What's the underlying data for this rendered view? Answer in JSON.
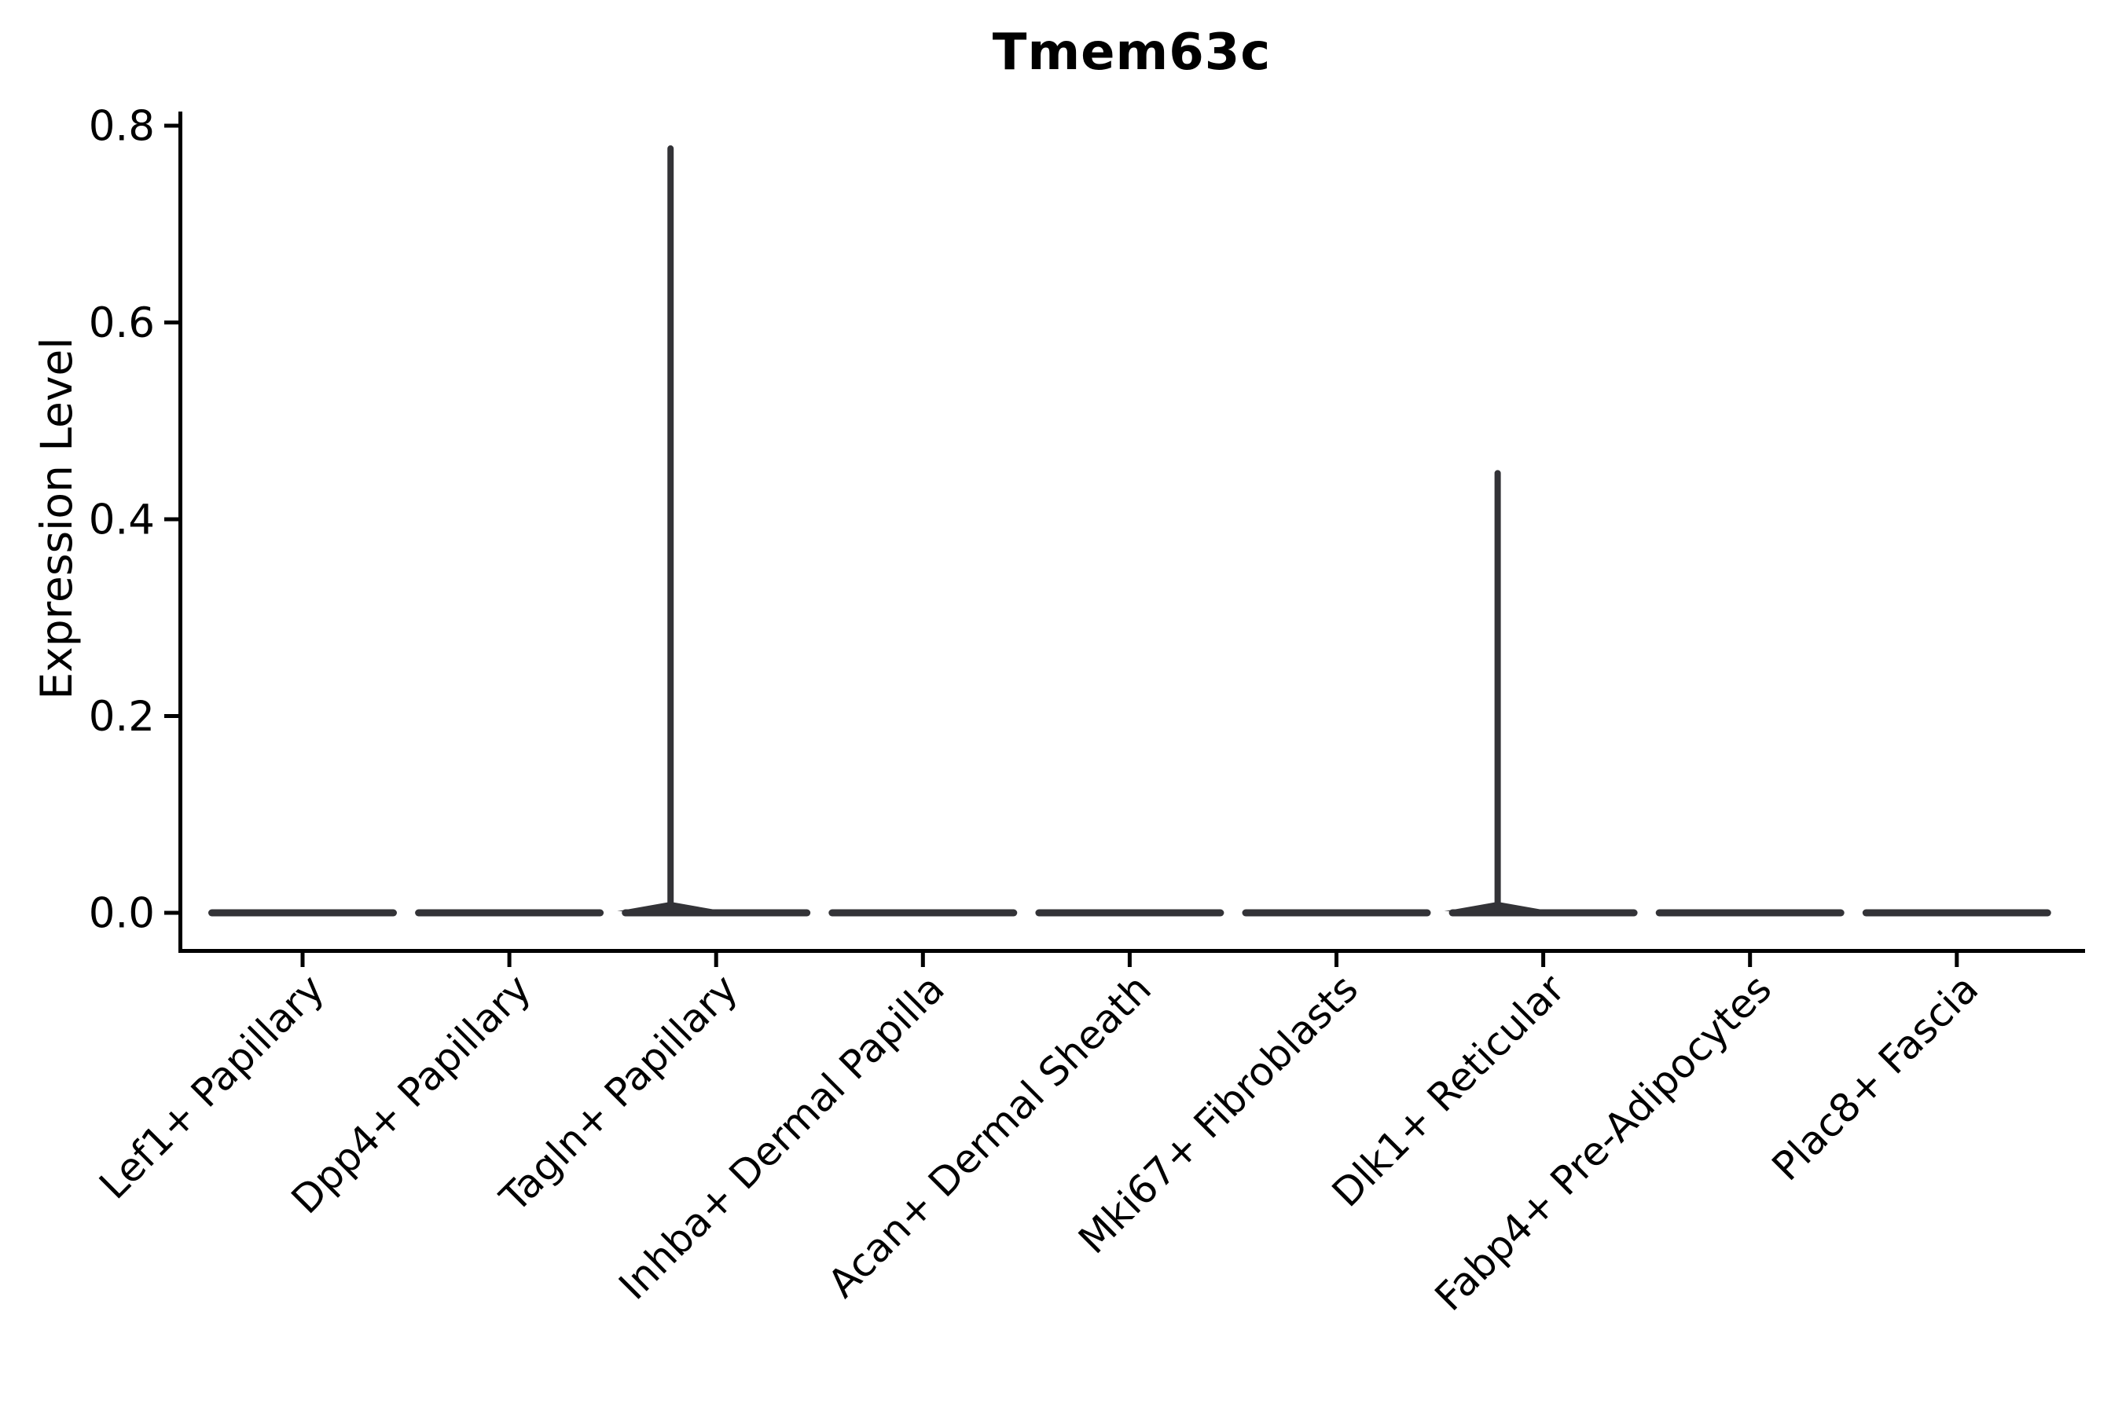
{
  "chart_data": {
    "type": "violin",
    "title": "Tmem63c",
    "ylabel": "Expression Level",
    "xlabel": "",
    "ylim": [
      0,
      0.8
    ],
    "ytick_labels": [
      "0.0",
      "0.2",
      "0.4",
      "0.6",
      "0.8"
    ],
    "ytick_values": [
      0.0,
      0.2,
      0.4,
      0.6,
      0.8
    ],
    "grid": false,
    "legend": false,
    "categories": [
      "Lef1+ Papillary",
      "Dpp4+ Papillary",
      "Tagln+ Papillary",
      "Inhba+ Dermal Papilla",
      "Acan+ Dermal Sheath",
      "Mki67+ Fibroblasts",
      "Dlk1+ Reticular",
      "Fabp4+ Pre-Adipocytes",
      "Plac8+ Fascia"
    ],
    "violins": [
      {
        "label": "Lef1+ Papillary",
        "body_value": 0.0,
        "max": 0.0
      },
      {
        "label": "Dpp4+ Papillary",
        "body_value": 0.0,
        "max": 0.0
      },
      {
        "label": "Tagln+ Papillary",
        "body_value": 0.0,
        "max": 0.78
      },
      {
        "label": "Inhba+ Dermal Papilla",
        "body_value": 0.0,
        "max": 0.0
      },
      {
        "label": "Acan+ Dermal Sheath",
        "body_value": 0.0,
        "max": 0.0
      },
      {
        "label": "Mki67+ Fibroblasts",
        "body_value": 0.0,
        "max": 0.0
      },
      {
        "label": "Dlk1+ Reticular",
        "body_value": 0.0,
        "max": 0.45
      },
      {
        "label": "Fabp4+ Pre-Adipocytes",
        "body_value": 0.0,
        "max": 0.0
      },
      {
        "label": "Plac8+ Fascia",
        "body_value": 0.0,
        "max": 0.0
      }
    ],
    "series": [
      {
        "name": "max_expression",
        "values": [
          0,
          0,
          0.78,
          0,
          0,
          0,
          0.45,
          0,
          0
        ]
      }
    ],
    "colors": {
      "violin": "#333337",
      "axis": "#000000",
      "background": "#ffffff"
    }
  }
}
